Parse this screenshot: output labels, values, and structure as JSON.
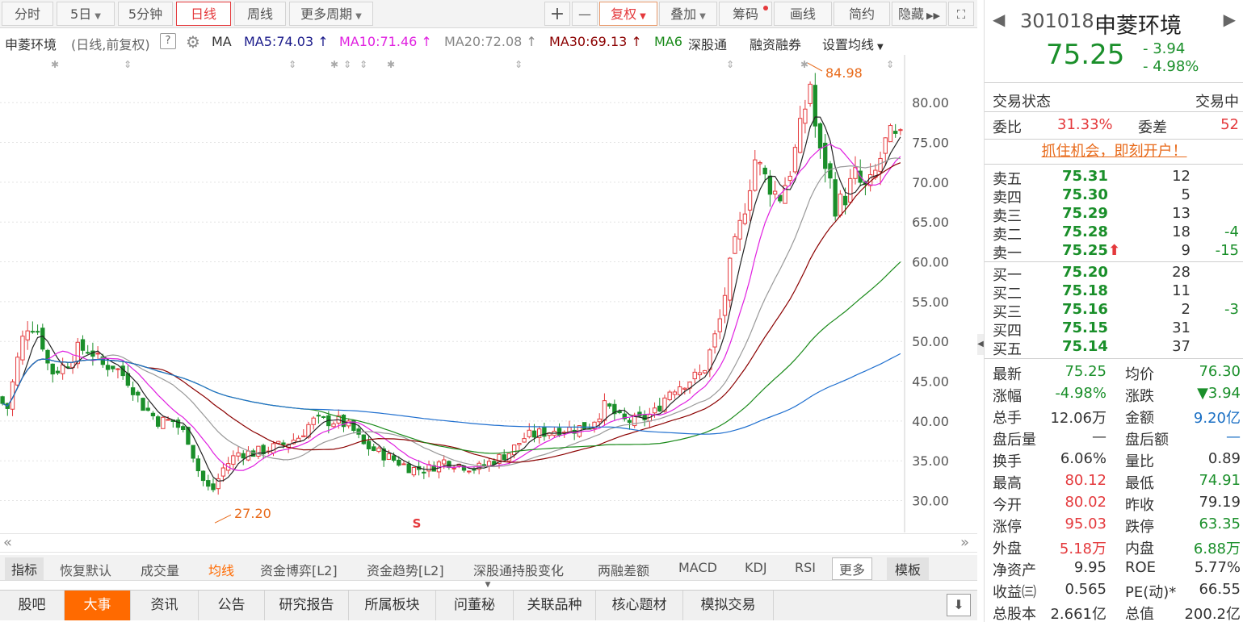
{
  "toolbar": {
    "timeframes": [
      "分时",
      "5日",
      "5分钟",
      "日线",
      "周线",
      "更多周期"
    ],
    "active": "日线",
    "plus": "+",
    "minus": "—",
    "fuquan": "复权",
    "diejia": "叠加",
    "chouma": "筹码",
    "huaxian": "画线",
    "jianyue": "简约",
    "yincang": "隐藏"
  },
  "info": {
    "name": "申菱环境",
    "mode": "(日线,前复权)",
    "help": "?",
    "ma": "MA",
    "ma5": "MA5:74.03",
    "ma10": "MA10:71.46",
    "ma20": "MA20:72.08",
    "ma30": "MA30:69.13",
    "ma60": "MA6",
    "shengutong": "深股通",
    "rongzi": "融资融券",
    "shezhi": "设置均线"
  },
  "chart_data": {
    "type": "candlestick",
    "y_ticks": [
      "80.00",
      "75.00",
      "70.00",
      "65.00",
      "60.00",
      "55.00",
      "50.00",
      "45.00",
      "40.00",
      "35.00",
      "30.00"
    ],
    "ylim": [
      26,
      86
    ],
    "high_label": "84.98",
    "low_label": "27.20",
    "marker_s": "S",
    "colors": {
      "up": "#e4393c",
      "down": "#1a8f2a",
      "ma5": "#222222",
      "ma10": "#e020e0",
      "ma20": "#999999",
      "ma30": "#8b0000",
      "ma60": "#1a8a1a",
      "ma120": "#1f6fcf"
    }
  },
  "indicators": {
    "items": [
      "指标",
      "恢复默认",
      "成交量",
      "均线",
      "资金博弈[L2]",
      "资金趋势[L2]",
      "深股通持股变化",
      "两融差额",
      "MACD",
      "KDJ",
      "RSI",
      "更多",
      "模板"
    ],
    "selected": "均线"
  },
  "bottom_tabs": {
    "items": [
      "股吧",
      "大事",
      "资讯",
      "公告",
      "研究报告",
      "所属板块",
      "问董秘",
      "关联品种",
      "核心题材",
      "模拟交易"
    ],
    "active": "大事"
  },
  "quote": {
    "code": "301018",
    "name": "申菱环境",
    "price": "75.25",
    "change": "- 3.94",
    "pct": "- 4.98%",
    "status_label": "交易状态",
    "status": "交易中",
    "weibi_label": "委比",
    "weibi": "31.33%",
    "weicha_label": "委差",
    "weicha": "52",
    "promo": "抓住机会，即刻开户！",
    "asks": [
      {
        "label": "卖五",
        "price": "75.31",
        "vol": "12",
        "chg": ""
      },
      {
        "label": "卖四",
        "price": "75.30",
        "vol": "5",
        "chg": ""
      },
      {
        "label": "卖三",
        "price": "75.29",
        "vol": "13",
        "chg": ""
      },
      {
        "label": "卖二",
        "price": "75.28",
        "vol": "18",
        "chg": "-4"
      },
      {
        "label": "卖一",
        "price": "75.25",
        "vol": "9",
        "chg": "-15"
      }
    ],
    "bids": [
      {
        "label": "买一",
        "price": "75.20",
        "vol": "28",
        "chg": ""
      },
      {
        "label": "买二",
        "price": "75.18",
        "vol": "11",
        "chg": ""
      },
      {
        "label": "买三",
        "price": "75.16",
        "vol": "2",
        "chg": "-3"
      },
      {
        "label": "买四",
        "price": "75.15",
        "vol": "31",
        "chg": ""
      },
      {
        "label": "买五",
        "price": "75.14",
        "vol": "37",
        "chg": ""
      }
    ],
    "stats": [
      {
        "l1": "最新",
        "v1": "75.25",
        "c1": "green",
        "l2": "均价",
        "v2": "76.30",
        "c2": "green"
      },
      {
        "l1": "涨幅",
        "v1": "-4.98%",
        "c1": "green",
        "l2": "涨跌",
        "v2": "▼3.94",
        "c2": "green"
      },
      {
        "l1": "总手",
        "v1": "12.06万",
        "c1": "",
        "l2": "金额",
        "v2": "9.20亿",
        "c2": "blue"
      },
      {
        "l1": "盘后量",
        "v1": "—",
        "c1": "",
        "l2": "盘后额",
        "v2": "—",
        "c2": "blue"
      },
      {
        "l1": "换手",
        "v1": "6.06%",
        "c1": "",
        "l2": "量比",
        "v2": "0.89",
        "c2": ""
      },
      {
        "l1": "最高",
        "v1": "80.12",
        "c1": "red",
        "l2": "最低",
        "v2": "74.91",
        "c2": "green"
      },
      {
        "l1": "今开",
        "v1": "80.02",
        "c1": "red",
        "l2": "昨收",
        "v2": "79.19",
        "c2": ""
      },
      {
        "l1": "涨停",
        "v1": "95.03",
        "c1": "red",
        "l2": "跌停",
        "v2": "63.35",
        "c2": "green"
      },
      {
        "l1": "外盘",
        "v1": "5.18万",
        "c1": "red",
        "l2": "内盘",
        "v2": "6.88万",
        "c2": "green"
      },
      {
        "l1": "净资产",
        "v1": "9.95",
        "c1": "",
        "l2": "ROE",
        "v2": "5.77%",
        "c2": ""
      },
      {
        "l1": "收益㈢",
        "v1": "0.565",
        "c1": "",
        "l2": "PE(动)*",
        "v2": "66.55",
        "c2": ""
      },
      {
        "l1": "总股本",
        "v1": "2.661亿",
        "c1": "",
        "l2": "总值",
        "v2": "200.2亿",
        "c2": ""
      }
    ]
  }
}
